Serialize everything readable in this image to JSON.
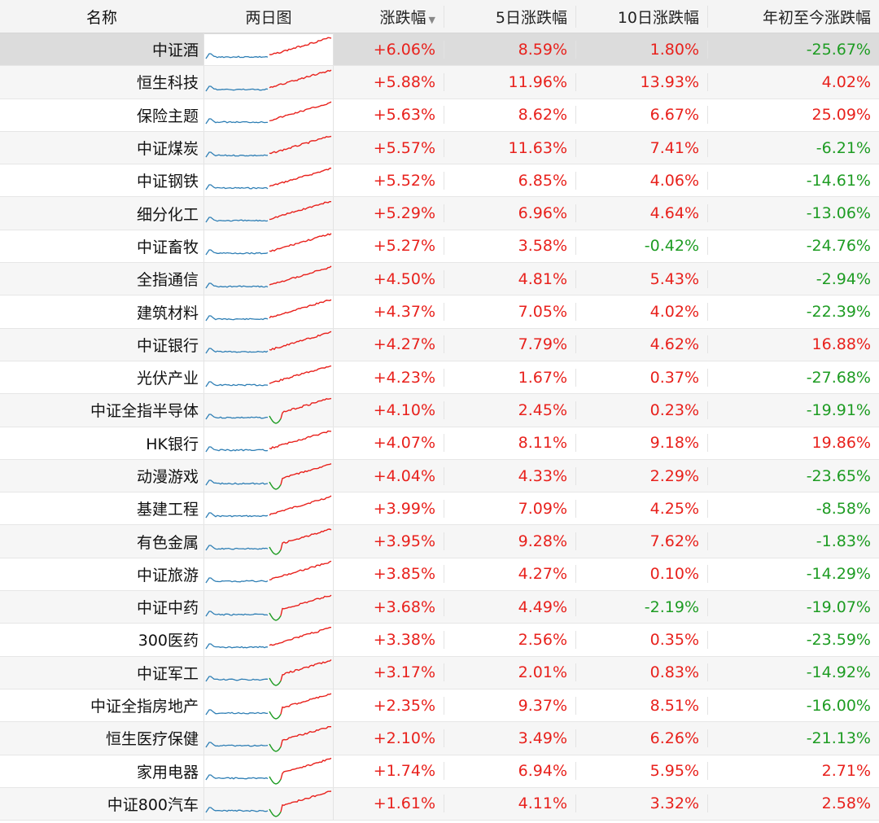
{
  "header": {
    "name": "名称",
    "two_day_chart": "两日图",
    "change": "涨跌幅",
    "change_5d": "5日涨跌幅",
    "change_10d": "10日涨跌幅",
    "change_ytd": "年初至今涨跌幅",
    "sort_icon": "triangle-down-icon"
  },
  "colors": {
    "up": "#e8211c",
    "down": "#1e9c23",
    "prev_day_line": "#2f7fb5"
  },
  "rows": [
    {
      "name": "中证酒",
      "change": "+6.06%",
      "d5": "8.59%",
      "d10": "1.80%",
      "ytd": "-25.67%",
      "selected": true
    },
    {
      "name": "恒生科技",
      "change": "+5.88%",
      "d5": "11.96%",
      "d10": "13.93%",
      "ytd": "4.02%"
    },
    {
      "name": "保险主题",
      "change": "+5.63%",
      "d5": "8.62%",
      "d10": "6.67%",
      "ytd": "25.09%"
    },
    {
      "name": "中证煤炭",
      "change": "+5.57%",
      "d5": "11.63%",
      "d10": "7.41%",
      "ytd": "-6.21%"
    },
    {
      "name": "中证钢铁",
      "change": "+5.52%",
      "d5": "6.85%",
      "d10": "4.06%",
      "ytd": "-14.61%"
    },
    {
      "name": "细分化工",
      "change": "+5.29%",
      "d5": "6.96%",
      "d10": "4.64%",
      "ytd": "-13.06%"
    },
    {
      "name": "中证畜牧",
      "change": "+5.27%",
      "d5": "3.58%",
      "d10": "-0.42%",
      "ytd": "-24.76%"
    },
    {
      "name": "全指通信",
      "change": "+4.50%",
      "d5": "4.81%",
      "d10": "5.43%",
      "ytd": "-2.94%"
    },
    {
      "name": "建筑材料",
      "change": "+4.37%",
      "d5": "7.05%",
      "d10": "4.02%",
      "ytd": "-22.39%"
    },
    {
      "name": "中证银行",
      "change": "+4.27%",
      "d5": "7.79%",
      "d10": "4.62%",
      "ytd": "16.88%"
    },
    {
      "name": "光伏产业",
      "change": "+4.23%",
      "d5": "1.67%",
      "d10": "0.37%",
      "ytd": "-27.68%"
    },
    {
      "name": "中证全指半导体",
      "change": "+4.10%",
      "d5": "2.45%",
      "d10": "0.23%",
      "ytd": "-19.91%"
    },
    {
      "name": "HK银行",
      "change": "+4.07%",
      "d5": "8.11%",
      "d10": "9.18%",
      "ytd": "19.86%"
    },
    {
      "name": "动漫游戏",
      "change": "+4.04%",
      "d5": "4.33%",
      "d10": "2.29%",
      "ytd": "-23.65%"
    },
    {
      "name": "基建工程",
      "change": "+3.99%",
      "d5": "7.09%",
      "d10": "4.25%",
      "ytd": "-8.58%"
    },
    {
      "name": "有色金属",
      "change": "+3.95%",
      "d5": "9.28%",
      "d10": "7.62%",
      "ytd": "-1.83%"
    },
    {
      "name": "中证旅游",
      "change": "+3.85%",
      "d5": "4.27%",
      "d10": "0.10%",
      "ytd": "-14.29%"
    },
    {
      "name": "中证中药",
      "change": "+3.68%",
      "d5": "4.49%",
      "d10": "-2.19%",
      "ytd": "-19.07%"
    },
    {
      "name": "300医药",
      "change": "+3.38%",
      "d5": "2.56%",
      "d10": "0.35%",
      "ytd": "-23.59%"
    },
    {
      "name": "中证军工",
      "change": "+3.17%",
      "d5": "2.01%",
      "d10": "0.83%",
      "ytd": "-14.92%"
    },
    {
      "name": "中证全指房地产",
      "change": "+2.35%",
      "d5": "9.37%",
      "d10": "8.51%",
      "ytd": "-16.00%"
    },
    {
      "name": "恒生医疗保健",
      "change": "+2.10%",
      "d5": "3.49%",
      "d10": "6.26%",
      "ytd": "-21.13%"
    },
    {
      "name": "家用电器",
      "change": "+1.74%",
      "d5": "6.94%",
      "d10": "5.95%",
      "ytd": "2.71%"
    },
    {
      "name": "中证800汽车",
      "change": "+1.61%",
      "d5": "4.11%",
      "d10": "3.32%",
      "ytd": "2.58%"
    }
  ]
}
